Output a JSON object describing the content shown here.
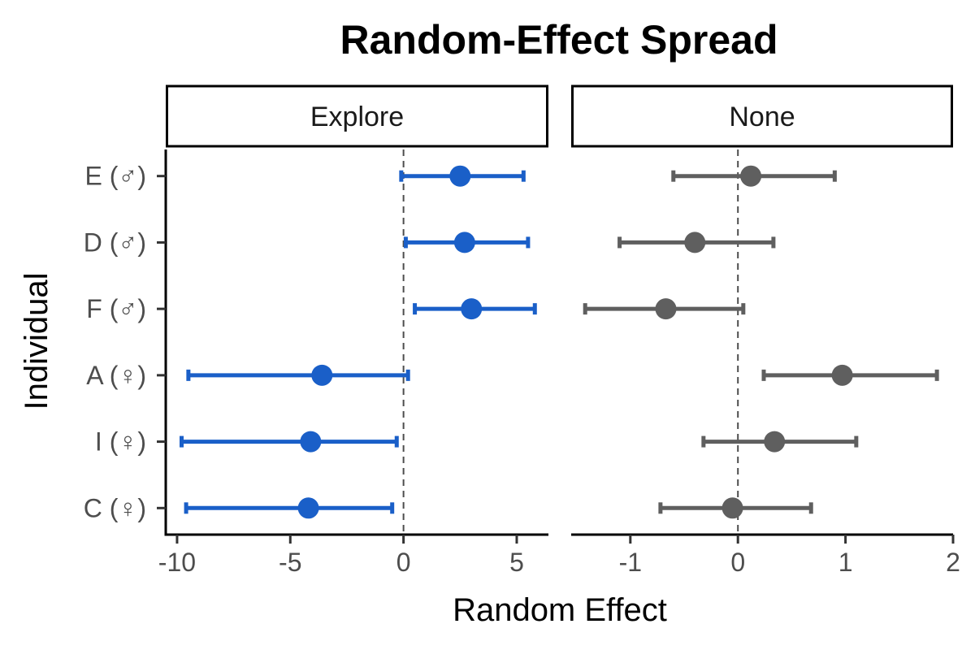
{
  "chart_data": {
    "type": "scatter",
    "title": "Random-Effect Spread",
    "xlabel": "Random Effect",
    "ylabel": "Individual",
    "categories": [
      "C (♀)",
      "I (♀)",
      "A (♀)",
      "F (♂)",
      "D (♂)",
      "E (♂)"
    ],
    "grid": false,
    "legend": "none",
    "panels": [
      {
        "name": "Explore",
        "color": "#1a5fc8",
        "xlim": [
          -10.5,
          6.4
        ],
        "xticks": [
          -10,
          -5,
          0,
          5
        ],
        "xtick_labels": [
          "-10",
          "-5",
          "0",
          "5"
        ],
        "points": [
          {
            "category": "E (♂)",
            "value": 2.5,
            "lower": -0.1,
            "upper": 5.3
          },
          {
            "category": "D (♂)",
            "value": 2.7,
            "lower": 0.1,
            "upper": 5.5
          },
          {
            "category": "F (♂)",
            "value": 3.0,
            "lower": 0.5,
            "upper": 5.8
          },
          {
            "category": "A (♀)",
            "value": -3.6,
            "lower": -9.5,
            "upper": 0.2
          },
          {
            "category": "I (♀)",
            "value": -4.1,
            "lower": -9.8,
            "upper": -0.3
          },
          {
            "category": "C (♀)",
            "value": -4.2,
            "lower": -9.6,
            "upper": -0.5
          }
        ]
      },
      {
        "name": "None",
        "color": "#5f5f5f",
        "xlim": [
          -1.55,
          2.0
        ],
        "xticks": [
          -1,
          0,
          1,
          2
        ],
        "xtick_labels": [
          "-1",
          "0",
          "1",
          "2"
        ],
        "points": [
          {
            "category": "E (♂)",
            "value": 0.12,
            "lower": -0.6,
            "upper": 0.9
          },
          {
            "category": "D (♂)",
            "value": -0.4,
            "lower": -1.1,
            "upper": 0.33
          },
          {
            "category": "F (♂)",
            "value": -0.67,
            "lower": -1.42,
            "upper": 0.05
          },
          {
            "category": "A (♀)",
            "value": 0.97,
            "lower": 0.24,
            "upper": 1.85
          },
          {
            "category": "I (♀)",
            "value": 0.34,
            "lower": -0.32,
            "upper": 1.1
          },
          {
            "category": "C (♀)",
            "value": -0.05,
            "lower": -0.72,
            "upper": 0.68
          }
        ]
      }
    ]
  }
}
